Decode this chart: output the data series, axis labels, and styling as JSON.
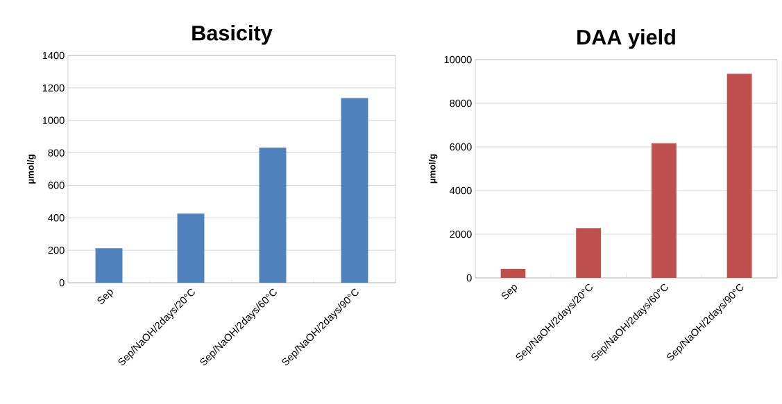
{
  "chart_data": [
    {
      "type": "bar",
      "title": "Basicity",
      "ylabel": "µmol/g",
      "categories": [
        "Sep",
        "Sep/NaOH/2days/20°C",
        "Sep/NaOH/2days/60°C",
        "Sep/NaOH/2days/90°C"
      ],
      "values": [
        212,
        426,
        832,
        1137
      ],
      "color": "#4f81bd",
      "ylim": [
        0,
        1400
      ],
      "yticks": [
        0,
        200,
        400,
        600,
        800,
        1000,
        1200,
        1400
      ],
      "grid": "y"
    },
    {
      "type": "bar",
      "title": "DAA yield",
      "ylabel": "µmol/g",
      "categories": [
        "Sep",
        "Sep/NaOH/2days/20°C",
        "Sep/NaOH/2days/60°C",
        "Sep/NaOH/2days/90°C"
      ],
      "values": [
        410,
        2280,
        6170,
        9350
      ],
      "color": "#c0504d",
      "ylim": [
        0,
        10000
      ],
      "yticks": [
        0,
        2000,
        4000,
        6000,
        8000,
        10000
      ],
      "grid": "y"
    }
  ]
}
